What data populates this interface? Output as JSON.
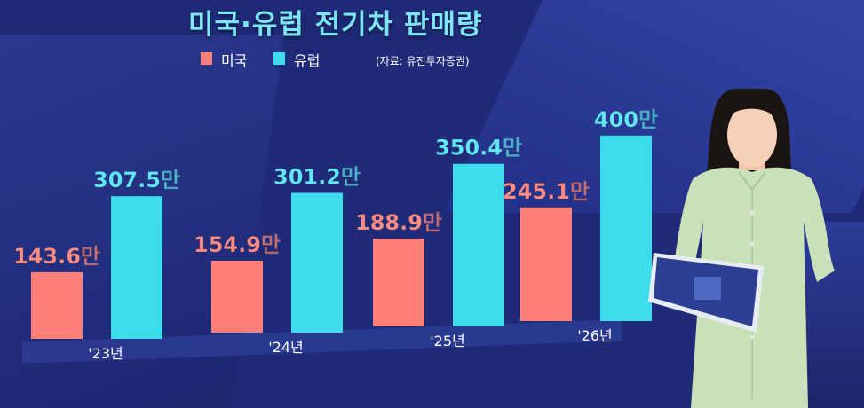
{
  "title": "미국·유럽 전기차 판매량",
  "source": "(자료: 유진투자증권)",
  "colors": {
    "background": "#1f2a78",
    "title": "#7ce6f2",
    "us": "#ff8078",
    "europe": "#3cdcea",
    "label_us": "#ff8d84",
    "label_europe": "#62e7f5",
    "baseline": "#2f3f98"
  },
  "chart_data": {
    "type": "bar",
    "title": "미국·유럽 전기차 판매량",
    "categories": [
      "'23년",
      "'24년",
      "'25년",
      "'26년"
    ],
    "series": [
      {
        "name": "미국",
        "values": [
          143.6,
          154.9,
          188.9,
          245.1
        ],
        "labels": [
          "143.6만",
          "154.9만",
          "188.9만",
          "245.1만"
        ]
      },
      {
        "name": "유럽",
        "values": [
          307.5,
          301.2,
          350.4,
          400
        ],
        "labels": [
          "307.5만",
          "301.2만",
          "350.4만",
          "400만"
        ]
      }
    ],
    "legend_position": "top-left",
    "grid": false,
    "source": "(자료: 유진투자증권)"
  },
  "presenter": {
    "icon": "news-anchor-icon",
    "tablet_icon": "tablet-logo-icon"
  }
}
